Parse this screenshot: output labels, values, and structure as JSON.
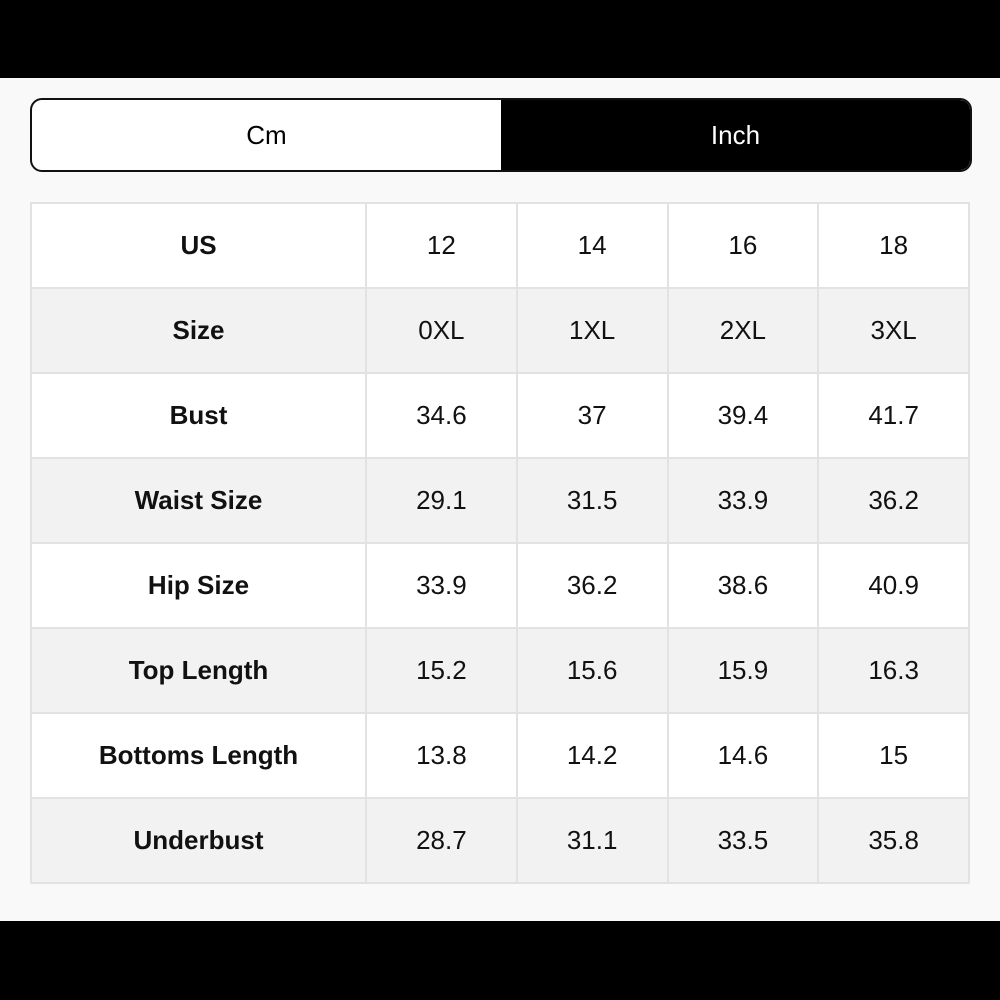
{
  "toggle": {
    "options": [
      "Cm",
      "Inch"
    ],
    "selected": 1
  },
  "table": {
    "rows": [
      [
        "US",
        "12",
        "14",
        "16",
        "18"
      ],
      [
        "Size",
        "0XL",
        "1XL",
        "2XL",
        "3XL"
      ],
      [
        "Bust",
        "34.6",
        "37",
        "39.4",
        "41.7"
      ],
      [
        "Waist Size",
        "29.1",
        "31.5",
        "33.9",
        "36.2"
      ],
      [
        "Hip Size",
        "33.9",
        "36.2",
        "38.6",
        "40.9"
      ],
      [
        "Top Length",
        "15.2",
        "15.6",
        "15.9",
        "16.3"
      ],
      [
        "Bottoms Length",
        "13.8",
        "14.2",
        "14.6",
        "15"
      ],
      [
        "Underbust",
        "28.7",
        "31.1",
        "33.5",
        "35.8"
      ]
    ]
  }
}
